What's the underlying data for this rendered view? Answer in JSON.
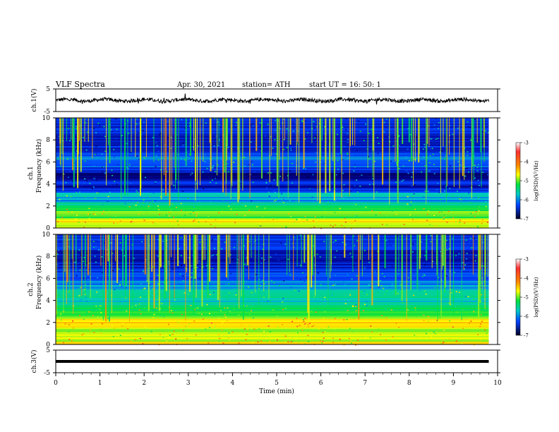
{
  "header": {
    "title": "VLF  Spectra",
    "date": "Apr. 30, 2021",
    "station": "station= ATH",
    "start": "start  UT  =    16: 50: 1"
  },
  "chart_data": [
    {
      "type": "line",
      "panel": "ch1-waveform",
      "ylabel": "ch.1(V)",
      "ylim": [
        -5,
        5
      ],
      "yticks": [
        "5",
        "-5"
      ],
      "xlim": [
        0,
        10
      ],
      "baseline_value": 0,
      "trace_end_min": 9.8,
      "trace_color": "#000000"
    },
    {
      "type": "heatmap",
      "panel": "ch1-spectrogram",
      "ylabel": "ch.1\nFrequency  (kHz)",
      "ylim": [
        0,
        10
      ],
      "yticks": [
        "0",
        "2",
        "4",
        "6",
        "8",
        "10"
      ],
      "xlim": [
        0,
        10
      ],
      "data_end_min": 9.8,
      "colorbar": {
        "label": "log(PSD)(V²/Hz)",
        "range": [
          -7,
          -3
        ],
        "ticks": [
          "-3",
          "-4",
          "-5",
          "-6",
          "-7"
        ]
      },
      "band_profile_log_psd": [
        [
          0.0,
          -4.8
        ],
        [
          0.3,
          -5.0
        ],
        [
          0.6,
          -4.6
        ],
        [
          1.0,
          -5.2
        ],
        [
          1.4,
          -5.0
        ],
        [
          1.8,
          -5.3
        ],
        [
          2.1,
          -5.5
        ],
        [
          2.5,
          -6.0
        ],
        [
          3.0,
          -5.7
        ],
        [
          3.4,
          -6.2
        ],
        [
          3.8,
          -6.6
        ],
        [
          4.2,
          -6.3
        ],
        [
          4.6,
          -6.7
        ],
        [
          5.0,
          -6.5
        ],
        [
          5.5,
          -6.2
        ],
        [
          6.0,
          -6.0
        ],
        [
          6.6,
          -6.1
        ],
        [
          7.0,
          -6.3
        ],
        [
          8.0,
          -6.4
        ],
        [
          9.0,
          -6.3
        ],
        [
          10.0,
          -6.3
        ]
      ]
    },
    {
      "type": "heatmap",
      "panel": "ch2-spectrogram",
      "ylabel": "ch.2\nFrequency  (kHz)",
      "ylim": [
        0,
        10
      ],
      "yticks": [
        "0",
        "2",
        "4",
        "6",
        "8",
        "10"
      ],
      "xlim": [
        0,
        10
      ],
      "data_end_min": 9.8,
      "colorbar": {
        "label": "log(PSD)(V²/Hz)",
        "range": [
          -7,
          -3
        ],
        "ticks": [
          "-3",
          "-4",
          "-5",
          "-6",
          "-7"
        ]
      },
      "band_profile_log_psd": [
        [
          0.0,
          -4.5
        ],
        [
          0.3,
          -4.8
        ],
        [
          0.6,
          -4.6
        ],
        [
          1.0,
          -5.0
        ],
        [
          1.5,
          -4.8
        ],
        [
          2.0,
          -4.4
        ],
        [
          2.5,
          -5.0
        ],
        [
          3.0,
          -5.2
        ],
        [
          3.5,
          -5.5
        ],
        [
          4.0,
          -5.8
        ],
        [
          4.5,
          -5.5
        ],
        [
          5.0,
          -5.8
        ],
        [
          5.5,
          -6.0
        ],
        [
          6.0,
          -6.2
        ],
        [
          7.0,
          -6.4
        ],
        [
          8.0,
          -6.4
        ],
        [
          9.0,
          -6.3
        ],
        [
          10.0,
          -6.3
        ]
      ]
    },
    {
      "type": "line",
      "panel": "ch3-waveform",
      "ylabel": "ch.3(V)",
      "ylim": [
        -5,
        5
      ],
      "yticks": [
        "5",
        "-5"
      ],
      "xlim": [
        0,
        10
      ],
      "baseline_value": 0,
      "trace_end_min": 9.8,
      "trace_color": "#000000"
    }
  ],
  "xaxis": {
    "label": "Time  (min)",
    "range": [
      0,
      10
    ],
    "ticks": [
      "0",
      "1",
      "2",
      "3",
      "4",
      "5",
      "6",
      "7",
      "8",
      "9",
      "10"
    ]
  }
}
